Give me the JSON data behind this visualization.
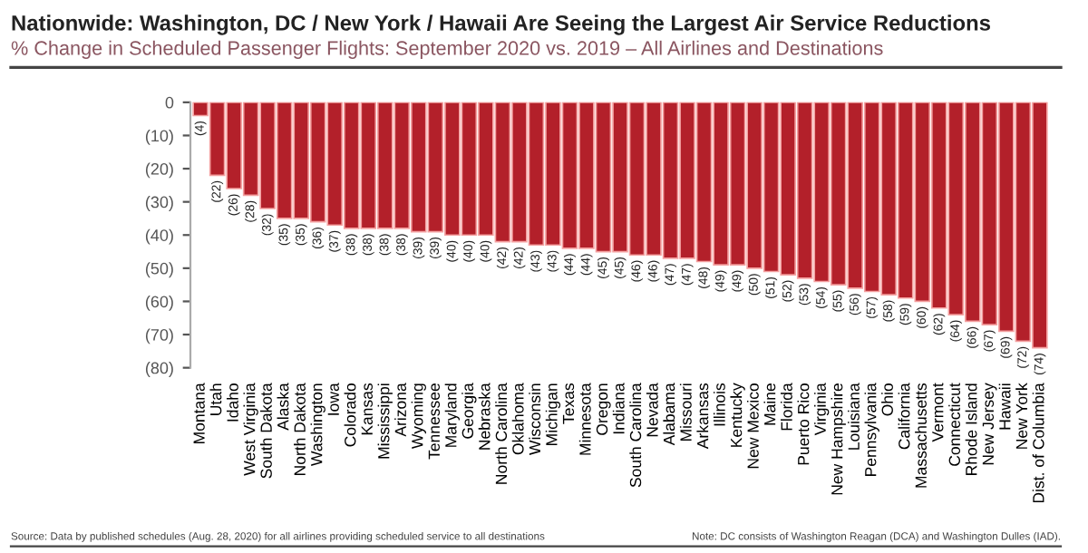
{
  "chart_data": {
    "type": "bar",
    "title": "Nationwide: Washington, DC / New York / Hawaii Are Seeing the Largest Air Service Reductions",
    "subtitle": "% Change in Scheduled Passenger Flights: September 2020 vs. 2019 – All Airlines and Destinations",
    "categories": [
      "Montana",
      "Utah",
      "Idaho",
      "West Virginia",
      "South Dakota",
      "Alaska",
      "North Dakota",
      "Washington",
      "Iowa",
      "Colorado",
      "Kansas",
      "Mississippi",
      "Arizona",
      "Wyoming",
      "Tennessee",
      "Maryland",
      "Georgia",
      "Nebraska",
      "North Carolina",
      "Oklahoma",
      "Wisconsin",
      "Michigan",
      "Texas",
      "Minnesota",
      "Oregon",
      "Indiana",
      "South Carolina",
      "Nevada",
      "Alabama",
      "Missouri",
      "Arkansas",
      "Illinois",
      "Kentucky",
      "New Mexico",
      "Maine",
      "Florida",
      "Puerto Rico",
      "Virginia",
      "New Hampshire",
      "Louisiana",
      "Pennsylvania",
      "Ohio",
      "California",
      "Massachusetts",
      "Vermont",
      "Connecticut",
      "Rhode Island",
      "New Jersey",
      "Hawaii",
      "New York",
      "Dist. of Columbia"
    ],
    "values": [
      -4,
      -22,
      -26,
      -28,
      -32,
      -35,
      -35,
      -36,
      -37,
      -38,
      -38,
      -38,
      -38,
      -39,
      -39,
      -40,
      -40,
      -40,
      -42,
      -42,
      -43,
      -43,
      -44,
      -44,
      -45,
      -45,
      -46,
      -46,
      -47,
      -47,
      -48,
      -49,
      -49,
      -50,
      -51,
      -52,
      -53,
      -54,
      -55,
      -56,
      -57,
      -58,
      -59,
      -60,
      -62,
      -64,
      -66,
      -67,
      -69,
      -72,
      -74
    ],
    "value_labels": [
      "(4)",
      "(22)",
      "(26)",
      "(28)",
      "(32)",
      "(35)",
      "(35)",
      "(36)",
      "(37)",
      "(38)",
      "(38)",
      "(38)",
      "(38)",
      "(39)",
      "(39)",
      "(40)",
      "(40)",
      "(40)",
      "(42)",
      "(42)",
      "(43)",
      "(43)",
      "(44)",
      "(44)",
      "(45)",
      "(45)",
      "(46)",
      "(46)",
      "(47)",
      "(47)",
      "(48)",
      "(49)",
      "(49)",
      "(50)",
      "(51)",
      "(52)",
      "(53)",
      "(54)",
      "(55)",
      "(56)",
      "(57)",
      "(58)",
      "(59)",
      "(60)",
      "(62)",
      "(64)",
      "(66)",
      "(67)",
      "(69)",
      "(72)",
      "(74)"
    ],
    "color": "#b3202a",
    "ylim": [
      -80,
      0
    ],
    "yticks": [
      {
        "value": 0,
        "label": "0"
      },
      {
        "value": -10,
        "label": "(10)"
      },
      {
        "value": -20,
        "label": "(20)"
      },
      {
        "value": -30,
        "label": "(30)"
      },
      {
        "value": -40,
        "label": "(40)"
      },
      {
        "value": -50,
        "label": "(50)"
      },
      {
        "value": -60,
        "label": "(60)"
      },
      {
        "value": -70,
        "label": "(70)"
      },
      {
        "value": -80,
        "label": "(80)"
      }
    ],
    "grid": false,
    "annotations": [
      "Source: Data by published schedules (Aug. 28, 2020) for all airlines providing scheduled service to all destinations",
      "Note: DC consists of Washington Reagan (DCA) and Washington Dulles (IAD)."
    ]
  }
}
